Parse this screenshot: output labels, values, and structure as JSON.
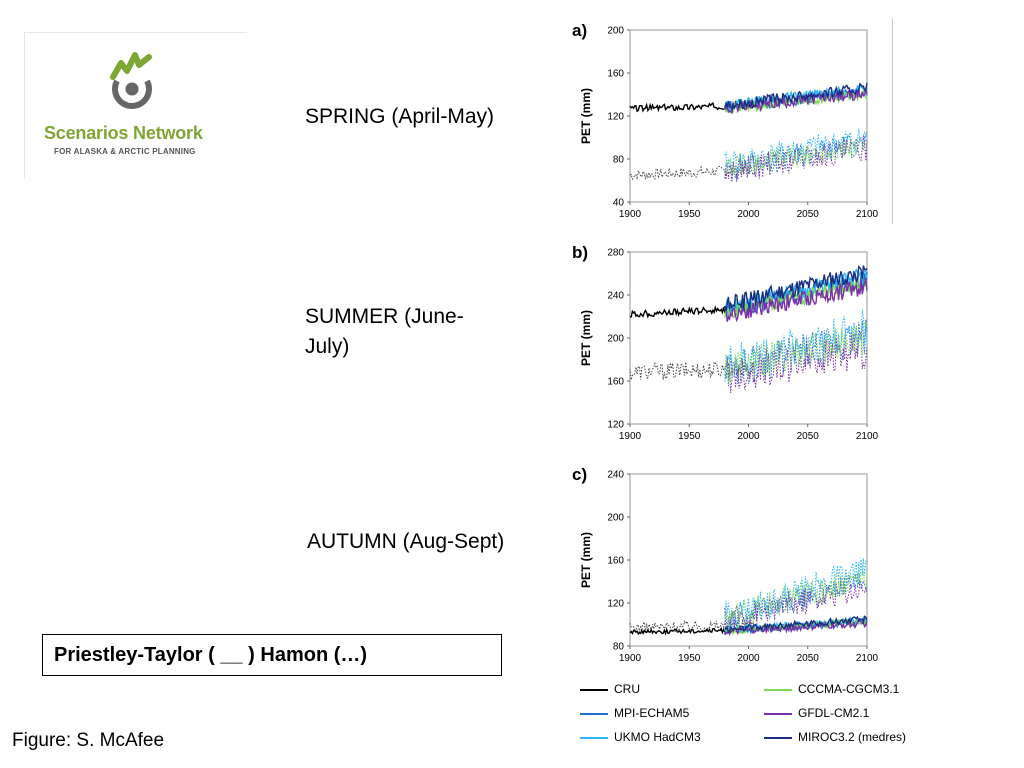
{
  "logo": {
    "name": "Scenarios Network",
    "tagline": "FOR ALASKA & ARCTIC PLANNING",
    "colors": {
      "green": "#7ea634",
      "gray": "#666666"
    }
  },
  "seasons": {
    "spring": "SPRING (April-May)",
    "summer_line1": "SUMMER (June-",
    "summer_line2": "July)",
    "autumn": "AUTUMN (Aug-Sept)"
  },
  "method_note": "Priestley-Taylor ( __ ) Hamon (…)",
  "credit": "Figure: S. McAfee",
  "chart_data": [
    {
      "type": "line",
      "panel_label": "a)",
      "ylabel": "PET (mm)",
      "xlim": [
        1900,
        2100
      ],
      "ylim": [
        40,
        200
      ],
      "x_ticks": [
        1900,
        1950,
        2000,
        2050,
        2100
      ],
      "y_ticks": [
        40,
        80,
        120,
        160,
        200
      ],
      "series": [
        {
          "name": "CRU",
          "style": "solid",
          "years": [
            1900,
            2005
          ],
          "start": 127,
          "end": 130,
          "amp": 3,
          "color": "#000000"
        },
        {
          "name": "CRU",
          "style": "dotted",
          "years": [
            1900,
            2005
          ],
          "start": 65,
          "end": 70,
          "amp": 5,
          "color": "#444444"
        },
        {
          "name": "MPI-ECHAM5",
          "style": "solid",
          "years": [
            1980,
            2100
          ],
          "start": 128,
          "end": 142,
          "amp": 5,
          "color": "#1f6fd1"
        },
        {
          "name": "UKMO HadCM3",
          "style": "solid",
          "years": [
            1980,
            2100
          ],
          "start": 130,
          "end": 145,
          "amp": 5,
          "color": "#29b6f6"
        },
        {
          "name": "CCCMA-CGCM3.1",
          "style": "solid",
          "years": [
            1980,
            2100
          ],
          "start": 126,
          "end": 140,
          "amp": 4,
          "color": "#7ed957"
        },
        {
          "name": "GFDL-CM2.1",
          "style": "solid",
          "years": [
            1980,
            2100
          ],
          "start": 127,
          "end": 141,
          "amp": 5,
          "color": "#7b2fa8"
        },
        {
          "name": "MIROC3.2 (medres)",
          "style": "solid",
          "years": [
            1980,
            2100
          ],
          "start": 130,
          "end": 146,
          "amp": 5,
          "color": "#1a2e80"
        },
        {
          "name": "MPI-ECHAM5",
          "style": "dotted",
          "years": [
            1980,
            2100
          ],
          "start": 70,
          "end": 95,
          "amp": 12,
          "color": "#1f6fd1"
        },
        {
          "name": "UKMO HadCM3",
          "style": "dotted",
          "years": [
            1980,
            2100
          ],
          "start": 75,
          "end": 100,
          "amp": 12,
          "color": "#29b6f6"
        },
        {
          "name": "GFDL-CM2.1",
          "style": "dotted",
          "years": [
            1980,
            2100
          ],
          "start": 68,
          "end": 90,
          "amp": 12,
          "color": "#7b2fa8"
        },
        {
          "name": "CCCMA-CGCM3.1",
          "style": "dotted",
          "years": [
            1980,
            2100
          ],
          "start": 72,
          "end": 92,
          "amp": 10,
          "color": "#7ed957"
        }
      ]
    },
    {
      "type": "line",
      "panel_label": "b)",
      "ylabel": "PET (mm)",
      "xlim": [
        1900,
        2100
      ],
      "ylim": [
        120,
        280
      ],
      "x_ticks": [
        1900,
        1950,
        2000,
        2050,
        2100
      ],
      "y_ticks": [
        120,
        160,
        200,
        240,
        280
      ],
      "series": [
        {
          "name": "CRU",
          "style": "solid",
          "years": [
            1900,
            2005
          ],
          "start": 222,
          "end": 228,
          "amp": 3,
          "color": "#000000"
        },
        {
          "name": "CRU",
          "style": "dotted",
          "years": [
            1900,
            2005
          ],
          "start": 168,
          "end": 172,
          "amp": 8,
          "color": "#444444"
        },
        {
          "name": "MPI-ECHAM5",
          "style": "solid",
          "years": [
            1980,
            2100
          ],
          "start": 225,
          "end": 255,
          "amp": 8,
          "color": "#1f6fd1"
        },
        {
          "name": "UKMO HadCM3",
          "style": "solid",
          "years": [
            1980,
            2100
          ],
          "start": 228,
          "end": 258,
          "amp": 8,
          "color": "#29b6f6"
        },
        {
          "name": "CCCMA-CGCM3.1",
          "style": "solid",
          "years": [
            1980,
            2100
          ],
          "start": 224,
          "end": 250,
          "amp": 7,
          "color": "#7ed957"
        },
        {
          "name": "GFDL-CM2.1",
          "style": "solid",
          "years": [
            1980,
            2100
          ],
          "start": 222,
          "end": 248,
          "amp": 8,
          "color": "#7b2fa8"
        },
        {
          "name": "MIROC3.2 (medres)",
          "style": "solid",
          "years": [
            1980,
            2100
          ],
          "start": 230,
          "end": 262,
          "amp": 8,
          "color": "#1a2e80"
        },
        {
          "name": "MPI-ECHAM5",
          "style": "dotted",
          "years": [
            1980,
            2100
          ],
          "start": 170,
          "end": 200,
          "amp": 18,
          "color": "#1f6fd1"
        },
        {
          "name": "UKMO HadCM3",
          "style": "dotted",
          "years": [
            1980,
            2100
          ],
          "start": 175,
          "end": 210,
          "amp": 18,
          "color": "#29b6f6"
        },
        {
          "name": "GFDL-CM2.1",
          "style": "dotted",
          "years": [
            1980,
            2100
          ],
          "start": 165,
          "end": 190,
          "amp": 18,
          "color": "#7b2fa8"
        },
        {
          "name": "CCCMA-CGCM3.1",
          "style": "dotted",
          "years": [
            1980,
            2100
          ],
          "start": 172,
          "end": 200,
          "amp": 16,
          "color": "#7ed957"
        }
      ]
    },
    {
      "type": "line",
      "panel_label": "c)",
      "ylabel": "PET (mm)",
      "xlim": [
        1900,
        2100
      ],
      "ylim": [
        80,
        240
      ],
      "x_ticks": [
        1900,
        1950,
        2000,
        2050,
        2100
      ],
      "y_ticks": [
        80,
        120,
        160,
        200,
        240
      ],
      "series": [
        {
          "name": "CRU",
          "style": "solid",
          "years": [
            1900,
            2005
          ],
          "start": 93,
          "end": 95,
          "amp": 2,
          "color": "#000000"
        },
        {
          "name": "CRU",
          "style": "dotted",
          "years": [
            1900,
            2005
          ],
          "start": 97,
          "end": 100,
          "amp": 5,
          "color": "#444444"
        },
        {
          "name": "MPI-ECHAM5",
          "style": "solid",
          "years": [
            1980,
            2100
          ],
          "start": 94,
          "end": 102,
          "amp": 3,
          "color": "#1f6fd1"
        },
        {
          "name": "UKMO HadCM3",
          "style": "solid",
          "years": [
            1980,
            2100
          ],
          "start": 95,
          "end": 104,
          "amp": 3,
          "color": "#29b6f6"
        },
        {
          "name": "CCCMA-CGCM3.1",
          "style": "solid",
          "years": [
            1980,
            2100
          ],
          "start": 94,
          "end": 103,
          "amp": 3,
          "color": "#7ed957"
        },
        {
          "name": "GFDL-CM2.1",
          "style": "solid",
          "years": [
            1980,
            2100
          ],
          "start": 93,
          "end": 101,
          "amp": 3,
          "color": "#7b2fa8"
        },
        {
          "name": "MIROC3.2 (medres)",
          "style": "solid",
          "years": [
            1980,
            2100
          ],
          "start": 95,
          "end": 105,
          "amp": 3,
          "color": "#1a2e80"
        },
        {
          "name": "MPI-ECHAM5",
          "style": "dotted",
          "years": [
            1980,
            2100
          ],
          "start": 105,
          "end": 140,
          "amp": 12,
          "color": "#1f6fd1"
        },
        {
          "name": "UKMO HadCM3",
          "style": "dotted",
          "years": [
            1980,
            2100
          ],
          "start": 108,
          "end": 150,
          "amp": 14,
          "color": "#29b6f6"
        },
        {
          "name": "GFDL-CM2.1",
          "style": "dotted",
          "years": [
            1980,
            2100
          ],
          "start": 104,
          "end": 135,
          "amp": 12,
          "color": "#7b2fa8"
        },
        {
          "name": "CCCMA-CGCM3.1",
          "style": "dotted",
          "years": [
            1980,
            2100
          ],
          "start": 106,
          "end": 145,
          "amp": 13,
          "color": "#7ed957"
        }
      ]
    }
  ],
  "legend": [
    {
      "label": "CRU",
      "color": "#000000"
    },
    {
      "label": "CCCMA-CGCM3.1",
      "color": "#7ed957"
    },
    {
      "label": "MPI-ECHAM5",
      "color": "#1f6fd1"
    },
    {
      "label": "GFDL-CM2.1",
      "color": "#7b2fa8"
    },
    {
      "label": "UKMO HadCM3",
      "color": "#29b6f6"
    },
    {
      "label": "MIROC3.2 (medres)",
      "color": "#1a2e80"
    }
  ]
}
